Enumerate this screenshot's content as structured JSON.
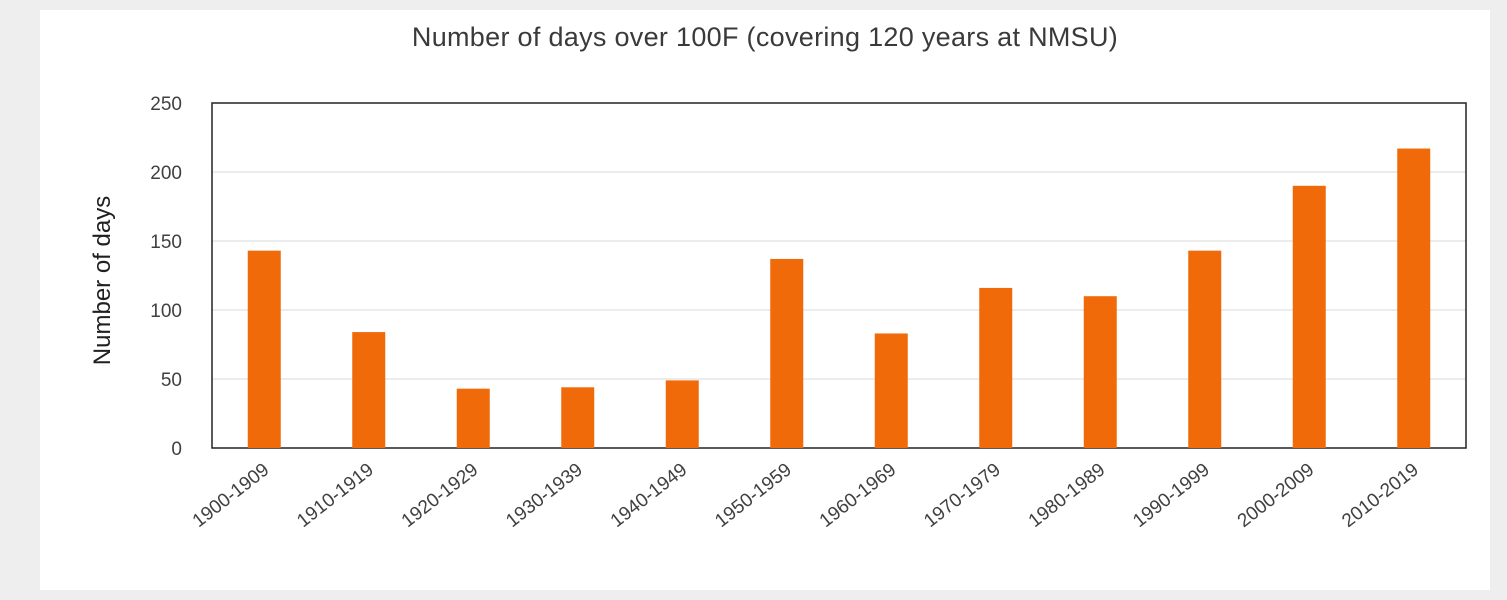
{
  "chart_data": {
    "type": "bar",
    "title": "Number of days over 100F (covering 120 years at NMSU)",
    "ylabel": "Number of days",
    "xlabel": "",
    "categories": [
      "1900-1909",
      "1910-1919",
      "1920-1929",
      "1930-1939",
      "1940-1949",
      "1950-1959",
      "1960-1969",
      "1970-1979",
      "1980-1989",
      "1990-1999",
      "2000-2009",
      "2010-2019"
    ],
    "values": [
      143,
      84,
      43,
      44,
      49,
      137,
      83,
      116,
      110,
      143,
      190,
      217
    ],
    "ylim": [
      0,
      250
    ],
    "yticks": [
      "0",
      "50",
      "100",
      "150",
      "200",
      "250"
    ],
    "grid": true,
    "legend": "none",
    "bar_color": "#f06a0a"
  }
}
